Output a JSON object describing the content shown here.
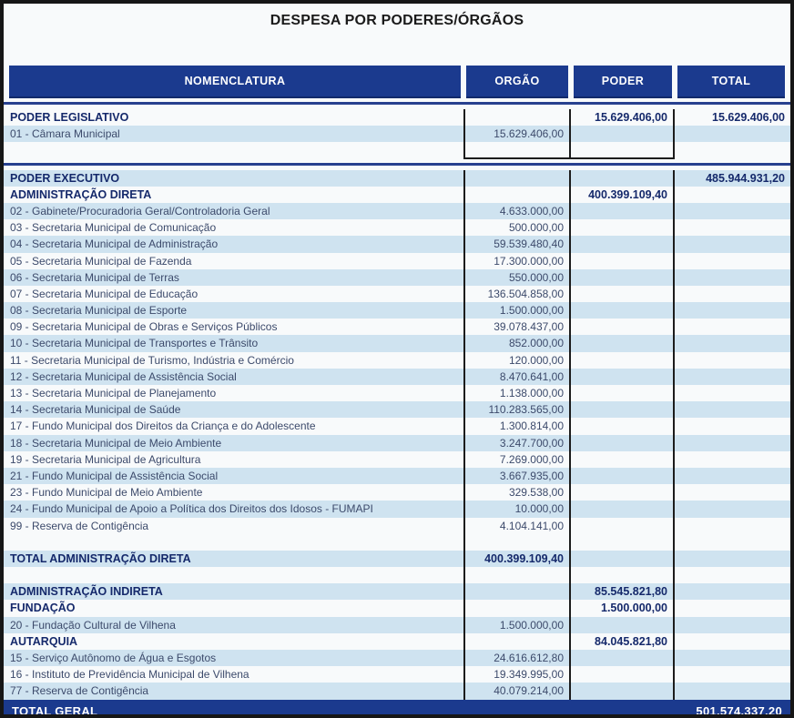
{
  "title": "DESPESA POR PODERES/ÓRGÃOS",
  "colors": {
    "header_navy": "#1b3a8e",
    "stripe_blue": "#cfe3f0",
    "section_text_navy": "#15296b",
    "body_text": "#3c4a6b",
    "border_black": "#1c1c1c"
  },
  "table": {
    "columns": {
      "nomenclatura": "NOMENCLATURA",
      "orgao": "ORGÃO",
      "poder": "PODER",
      "total": "TOTAL"
    },
    "rows": [
      {
        "kind": "section",
        "stripe": false,
        "name": "PODER LEGISLATIVO",
        "orgao": "",
        "poder": "15.629.406,00",
        "total": "15.629.406,00"
      },
      {
        "kind": "item",
        "stripe": true,
        "name": "01 - Câmara Municipal",
        "orgao": "15.629.406,00",
        "poder": "",
        "total": ""
      },
      {
        "kind": "blank-boxend",
        "stripe": false,
        "name": "",
        "orgao": "",
        "poder": "",
        "total": ""
      },
      {
        "kind": "separator"
      },
      {
        "kind": "section",
        "stripe": true,
        "name": "PODER EXECUTIVO",
        "orgao": "",
        "poder": "",
        "total": "485.944.931,20"
      },
      {
        "kind": "section",
        "stripe": false,
        "name": "ADMINISTRAÇÃO DIRETA",
        "orgao": "",
        "poder": "400.399.109,40",
        "total": ""
      },
      {
        "kind": "item",
        "stripe": true,
        "name": "02 - Gabinete/Procuradoria Geral/Controladoria Geral",
        "orgao": "4.633.000,00",
        "poder": "",
        "total": ""
      },
      {
        "kind": "item",
        "stripe": false,
        "name": "03 - Secretaria Municipal de Comunicação",
        "orgao": "500.000,00",
        "poder": "",
        "total": ""
      },
      {
        "kind": "item",
        "stripe": true,
        "name": "04 - Secretaria Municipal de Administração",
        "orgao": "59.539.480,40",
        "poder": "",
        "total": ""
      },
      {
        "kind": "item",
        "stripe": false,
        "name": "05 - Secretaria Municipal de Fazenda",
        "orgao": "17.300.000,00",
        "poder": "",
        "total": ""
      },
      {
        "kind": "item",
        "stripe": true,
        "name": "06 - Secretaria Municipal de Terras",
        "orgao": "550.000,00",
        "poder": "",
        "total": ""
      },
      {
        "kind": "item",
        "stripe": false,
        "name": "07 - Secretaria Municipal de Educação",
        "orgao": "136.504.858,00",
        "poder": "",
        "total": ""
      },
      {
        "kind": "item",
        "stripe": true,
        "name": "08 - Secretaria Municipal de Esporte",
        "orgao": "1.500.000,00",
        "poder": "",
        "total": ""
      },
      {
        "kind": "item",
        "stripe": false,
        "name": "09 - Secretaria Municipal de Obras e Serviços Públicos",
        "orgao": "39.078.437,00",
        "poder": "",
        "total": ""
      },
      {
        "kind": "item",
        "stripe": true,
        "name": "10 - Secretaria Municipal de Transportes e Trânsito",
        "orgao": "852.000,00",
        "poder": "",
        "total": ""
      },
      {
        "kind": "item",
        "stripe": false,
        "name": "11 - Secretaria Municipal de Turismo, Indústria e Comércio",
        "orgao": "120.000,00",
        "poder": "",
        "total": ""
      },
      {
        "kind": "item",
        "stripe": true,
        "name": "12 - Secretaria Municipal de Assistência Social",
        "orgao": "8.470.641,00",
        "poder": "",
        "total": ""
      },
      {
        "kind": "item",
        "stripe": false,
        "name": "13 - Secretaria Municipal de Planejamento",
        "orgao": "1.138.000,00",
        "poder": "",
        "total": ""
      },
      {
        "kind": "item",
        "stripe": true,
        "name": "14 - Secretaria Municipal de Saúde",
        "orgao": "110.283.565,00",
        "poder": "",
        "total": ""
      },
      {
        "kind": "item",
        "stripe": false,
        "name": "17 - Fundo Municipal dos Direitos da Criança e do Adolescente",
        "orgao": "1.300.814,00",
        "poder": "",
        "total": ""
      },
      {
        "kind": "item",
        "stripe": true,
        "name": "18 - Secretaria Municipal de Meio Ambiente",
        "orgao": "3.247.700,00",
        "poder": "",
        "total": ""
      },
      {
        "kind": "item",
        "stripe": false,
        "name": "19 - Secretaria Municipal de Agricultura",
        "orgao": "7.269.000,00",
        "poder": "",
        "total": ""
      },
      {
        "kind": "item",
        "stripe": true,
        "name": "21 - Fundo Municipal de Assistência Social",
        "orgao": "3.667.935,00",
        "poder": "",
        "total": ""
      },
      {
        "kind": "item",
        "stripe": false,
        "name": "23 - Fundo Municipal de Meio Ambiente",
        "orgao": "329.538,00",
        "poder": "",
        "total": ""
      },
      {
        "kind": "item",
        "stripe": true,
        "name": "24 - Fundo Municipal de Apoio a Política dos Direitos dos Idosos - FUMAPI",
        "orgao": "10.000,00",
        "poder": "",
        "total": ""
      },
      {
        "kind": "item",
        "stripe": false,
        "name": "99 - Reserva de Contigência",
        "orgao": "4.104.141,00",
        "poder": "",
        "total": ""
      },
      {
        "kind": "blank",
        "stripe": false,
        "name": "",
        "orgao": "",
        "poder": "",
        "total": ""
      },
      {
        "kind": "section",
        "stripe": true,
        "name": "TOTAL ADMINISTRAÇÃO DIRETA",
        "orgao": "400.399.109,40",
        "poder": "",
        "total": ""
      },
      {
        "kind": "blank",
        "stripe": false,
        "name": "",
        "orgao": "",
        "poder": "",
        "total": ""
      },
      {
        "kind": "section",
        "stripe": true,
        "name": "ADMINISTRAÇÃO INDIRETA",
        "orgao": "",
        "poder": "85.545.821,80",
        "total": ""
      },
      {
        "kind": "section",
        "stripe": false,
        "name": "FUNDAÇÃO",
        "orgao": "",
        "poder": "1.500.000,00",
        "total": ""
      },
      {
        "kind": "item",
        "stripe": true,
        "name": "20 - Fundação Cultural de Vilhena",
        "orgao": "1.500.000,00",
        "poder": "",
        "total": ""
      },
      {
        "kind": "section",
        "stripe": false,
        "name": "AUTARQUIA",
        "orgao": "",
        "poder": "84.045.821,80",
        "total": ""
      },
      {
        "kind": "item",
        "stripe": true,
        "name": "15 - Serviço Autônomo de Água e Esgotos",
        "orgao": "24.616.612,80",
        "poder": "",
        "total": ""
      },
      {
        "kind": "item",
        "stripe": false,
        "name": "16 - Instituto de Previdência Municipal de Vilhena",
        "orgao": "19.349.995,00",
        "poder": "",
        "total": ""
      },
      {
        "kind": "item",
        "stripe": true,
        "name": "77 - Reserva de Contigência",
        "orgao": "40.079.214,00",
        "poder": "",
        "total": ""
      }
    ],
    "footer": {
      "label": "TOTAL GERAL",
      "total": "501.574.337,20"
    }
  }
}
